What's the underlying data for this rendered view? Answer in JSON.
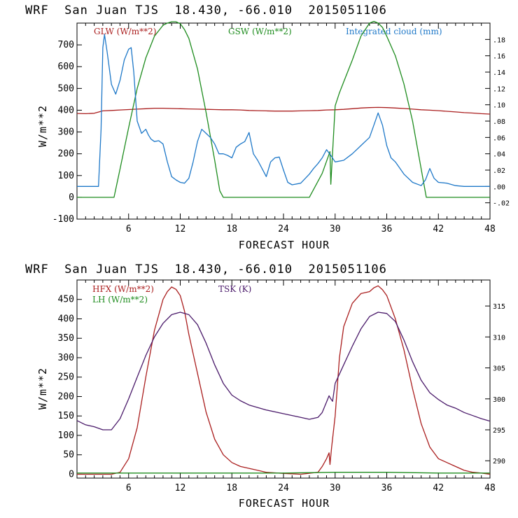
{
  "chart_data": [
    {
      "type": "line",
      "title": "WRF  San Juan TJS  18.430, -66.010  2015051106",
      "xlabel": "FORECAST HOUR",
      "ylabel": "W/m**2",
      "xlim": [
        0,
        48
      ],
      "ylim": [
        -100,
        800
      ],
      "x_ticks": [
        6,
        12,
        18,
        24,
        30,
        36,
        42,
        48
      ],
      "x_tick_labels": [
        "6",
        "12",
        "18",
        "24",
        "30",
        "36",
        "42",
        "48"
      ],
      "y_ticks": [
        -100,
        0,
        100,
        200,
        300,
        400,
        500,
        600,
        700
      ],
      "y_tick_labels": [
        "-100",
        "0",
        "100",
        "200",
        "300",
        "400",
        "500",
        "600",
        "700"
      ],
      "y2lim": [
        -0.04,
        0.2
      ],
      "y2_ticks": [
        -0.02,
        0,
        0.02,
        0.04,
        0.06,
        0.08,
        0.1,
        0.12,
        0.14,
        0.16,
        0.18
      ],
      "y2_tick_labels": [
        "-.02",
        ".00",
        ".02",
        ".04",
        ".06",
        ".08",
        ".10",
        ".12",
        ".14",
        ".16",
        ".18"
      ],
      "grid": false,
      "legend_position": "top",
      "series": [
        {
          "name": "GLW (W/m**2)",
          "color": "#aa1e1e",
          "axis": "left",
          "x": [
            0,
            1,
            2,
            3,
            4,
            5,
            6,
            7,
            8,
            9,
            10,
            11,
            12,
            13,
            14,
            15,
            16,
            17,
            18,
            19,
            20,
            21,
            22,
            23,
            24,
            25,
            26,
            27,
            28,
            29,
            30,
            31,
            32,
            33,
            34,
            35,
            36,
            37,
            38,
            39,
            40,
            41,
            42,
            43,
            44,
            45,
            46,
            47,
            48
          ],
          "y": [
            385,
            384,
            386,
            397,
            399,
            401,
            403,
            405,
            407,
            409,
            409,
            408,
            407,
            406,
            405,
            404,
            403,
            402,
            402,
            401,
            399,
            398,
            397,
            396,
            396,
            396,
            397,
            398,
            399,
            401,
            402,
            404,
            407,
            410,
            412,
            413,
            412,
            410,
            408,
            405,
            402,
            400,
            398,
            395,
            392,
            389,
            387,
            384,
            382
          ]
        },
        {
          "name": "GSW (W/m**2)",
          "color": "#1e8c1e",
          "axis": "left",
          "x": [
            0,
            4.3,
            5,
            6,
            7,
            8,
            9,
            10,
            10.5,
            11,
            11.5,
            12,
            12.5,
            13,
            14,
            15,
            16,
            16.6,
            17,
            27,
            28.5,
            29.4,
            29.5,
            30,
            30.5,
            31,
            32,
            33,
            34,
            34.5,
            35,
            35.5,
            36,
            37,
            38,
            39,
            40,
            40.6,
            41,
            48
          ],
          "y": [
            0,
            0,
            130,
            320,
            500,
            640,
            740,
            790,
            800,
            806,
            806,
            797,
            770,
            730,
            590,
            390,
            170,
            30,
            0,
            0,
            110,
            210,
            60,
            420,
            480,
            530,
            630,
            740,
            800,
            808,
            800,
            780,
            740,
            650,
            520,
            350,
            130,
            0,
            0,
            0
          ]
        },
        {
          "name": "Integrated cloud (mm)",
          "color": "#1e78c8",
          "axis": "right",
          "x": [
            0,
            2.5,
            2.8,
            3.0,
            3.2,
            3.5,
            4.0,
            4.5,
            5.0,
            5.5,
            6.0,
            6.3,
            6.6,
            7.0,
            7.5,
            8.0,
            8.3,
            8.6,
            9.0,
            9.5,
            10.0,
            10.5,
            11.0,
            11.5,
            12.0,
            12.5,
            13.0,
            13.5,
            14.0,
            14.5,
            15.0,
            15.5,
            16.0,
            16.5,
            17.0,
            17.5,
            18.0,
            18.5,
            19.0,
            19.5,
            20.0,
            20.5,
            21.0,
            21.5,
            22.0,
            22.5,
            23.0,
            23.5,
            24.0,
            24.5,
            25.0,
            26.0,
            27.0,
            27.5,
            28.0,
            28.5,
            29.0,
            29.5,
            30.0,
            31.0,
            32.0,
            33.0,
            34.0,
            34.5,
            35.0,
            35.5,
            36.0,
            36.5,
            37.0,
            38.0,
            39.0,
            40.0,
            40.5,
            41.0,
            41.5,
            42.0,
            43.0,
            44.0,
            45.0,
            46.0,
            48.0
          ],
          "y": [
            0.0,
            0.0,
            0.07,
            0.17,
            0.186,
            0.165,
            0.125,
            0.113,
            0.13,
            0.155,
            0.168,
            0.17,
            0.14,
            0.08,
            0.065,
            0.07,
            0.063,
            0.058,
            0.055,
            0.056,
            0.052,
            0.03,
            0.012,
            0.008,
            0.005,
            0.004,
            0.01,
            0.03,
            0.055,
            0.07,
            0.065,
            0.06,
            0.052,
            0.04,
            0.04,
            0.038,
            0.035,
            0.048,
            0.052,
            0.055,
            0.066,
            0.04,
            0.032,
            0.022,
            0.012,
            0.03,
            0.035,
            0.036,
            0.02,
            0.005,
            0.002,
            0.004,
            0.015,
            0.022,
            0.028,
            0.035,
            0.045,
            0.038,
            0.03,
            0.032,
            0.04,
            0.05,
            0.06,
            0.075,
            0.09,
            0.075,
            0.05,
            0.035,
            0.03,
            0.015,
            0.005,
            0.001,
            0.008,
            0.022,
            0.01,
            0.005,
            0.004,
            0.001,
            0.0,
            0.0,
            0.0
          ]
        }
      ]
    },
    {
      "type": "line",
      "title": "WRF  San Juan TJS  18.430, -66.010  2015051106",
      "xlabel": "FORECAST HOUR",
      "ylabel": "W/m**2",
      "xlim": [
        0,
        48
      ],
      "ylim": [
        -10,
        500
      ],
      "x_ticks": [
        6,
        12,
        18,
        24,
        30,
        36,
        42,
        48
      ],
      "x_tick_labels": [
        "6",
        "12",
        "18",
        "24",
        "30",
        "36",
        "42",
        "48"
      ],
      "y_ticks": [
        0,
        50,
        100,
        150,
        200,
        250,
        300,
        350,
        400,
        450
      ],
      "y_tick_labels": [
        "0",
        "50",
        "100",
        "150",
        "200",
        "250",
        "300",
        "350",
        "400",
        "450"
      ],
      "y2lim": [
        287.2,
        319.2
      ],
      "y2_ticks": [
        290,
        295,
        300,
        305,
        310,
        315
      ],
      "y2_tick_labels": [
        "290",
        "295",
        "300",
        "305",
        "310",
        "315"
      ],
      "grid": false,
      "legend_position": "top",
      "series": [
        {
          "name": "HFX (W/m**2)",
          "color": "#aa1e1e",
          "axis": "left",
          "x": [
            0,
            4,
            5,
            6,
            7,
            8,
            9,
            10,
            10.5,
            11,
            11.5,
            12,
            12.5,
            13,
            14,
            15,
            16,
            17,
            18,
            19,
            20,
            21,
            22,
            24,
            26,
            28,
            28.5,
            29,
            29.3,
            29.4,
            29.6,
            30,
            30.5,
            31,
            32,
            33,
            34,
            34.5,
            35,
            35.5,
            36,
            37,
            38,
            39,
            40,
            41,
            42,
            43,
            44,
            45,
            46,
            47,
            48
          ],
          "y": [
            0,
            0,
            5,
            40,
            120,
            250,
            370,
            450,
            470,
            482,
            476,
            460,
            420,
            360,
            260,
            160,
            90,
            50,
            30,
            20,
            15,
            10,
            5,
            2,
            0,
            5,
            20,
            40,
            55,
            25,
            70,
            150,
            300,
            380,
            440,
            465,
            470,
            480,
            485,
            475,
            460,
            400,
            320,
            220,
            130,
            70,
            40,
            30,
            20,
            10,
            5,
            3,
            0
          ]
        },
        {
          "name": "LH (W/m**2)",
          "color": "#1e8c1e",
          "axis": "left",
          "x": [
            0,
            6,
            12,
            18,
            24,
            30,
            36,
            42,
            48
          ],
          "y": [
            3,
            3,
            3,
            3,
            3,
            5,
            5,
            3,
            3
          ]
        },
        {
          "name": "TSK (K)",
          "color": "#4a1a6a",
          "axis": "right",
          "x": [
            0,
            1,
            2,
            3,
            4,
            5,
            6,
            7,
            8,
            9,
            10,
            11,
            12,
            13,
            14,
            15,
            16,
            17,
            18,
            19,
            20,
            22,
            24,
            26,
            27,
            28,
            28.5,
            29,
            29.3,
            29.5,
            29.7,
            30,
            31,
            32,
            33,
            34,
            35,
            36,
            37,
            38,
            39,
            40,
            41,
            42,
            43,
            44,
            45,
            46,
            47,
            48
          ],
          "y": [
            296.5,
            295.8,
            295.5,
            295.0,
            295.0,
            296.8,
            300.0,
            303.5,
            307.0,
            310.0,
            312.2,
            313.6,
            314.0,
            313.6,
            312.0,
            309.0,
            305.5,
            302.5,
            300.6,
            299.7,
            299.0,
            298.2,
            297.6,
            297.0,
            296.7,
            297.0,
            297.8,
            299.5,
            300.5,
            300.0,
            299.6,
            302.5,
            305.5,
            308.5,
            311.3,
            313.3,
            314.0,
            313.8,
            312.5,
            309.5,
            306.0,
            303.0,
            301.0,
            299.9,
            299.0,
            298.5,
            297.8,
            297.3,
            296.8,
            296.4
          ]
        }
      ]
    }
  ]
}
